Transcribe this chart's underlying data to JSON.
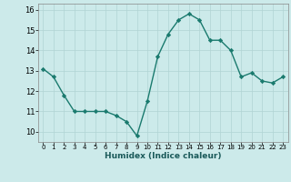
{
  "x": [
    0,
    1,
    2,
    3,
    4,
    5,
    6,
    7,
    8,
    9,
    10,
    11,
    12,
    13,
    14,
    15,
    16,
    17,
    18,
    19,
    20,
    21,
    22,
    23
  ],
  "y": [
    13.1,
    12.7,
    11.8,
    11.0,
    11.0,
    11.0,
    11.0,
    10.8,
    10.5,
    9.8,
    11.5,
    13.7,
    14.8,
    15.5,
    15.8,
    15.5,
    14.5,
    14.5,
    14.0,
    12.7,
    12.9,
    12.5,
    12.4,
    12.7
  ],
  "xlabel": "Humidex (Indice chaleur)",
  "ylim": [
    9.5,
    16.3
  ],
  "xlim": [
    -0.5,
    23.5
  ],
  "yticks": [
    10,
    11,
    12,
    13,
    14,
    15,
    16
  ],
  "xtick_labels": [
    "0",
    "1",
    "2",
    "3",
    "4",
    "5",
    "6",
    "7",
    "8",
    "9",
    "10",
    "11",
    "12",
    "13",
    "14",
    "15",
    "16",
    "17",
    "18",
    "19",
    "20",
    "21",
    "22",
    "23"
  ],
  "line_color": "#1a7a6e",
  "marker_color": "#1a7a6e",
  "bg_color": "#cceaea",
  "grid_color": "#b0d4d4",
  "marker": "D",
  "marker_size": 2.2,
  "line_width": 1.0,
  "xlabel_fontsize": 6.5,
  "xtick_fontsize": 5.0,
  "ytick_fontsize": 6.0
}
